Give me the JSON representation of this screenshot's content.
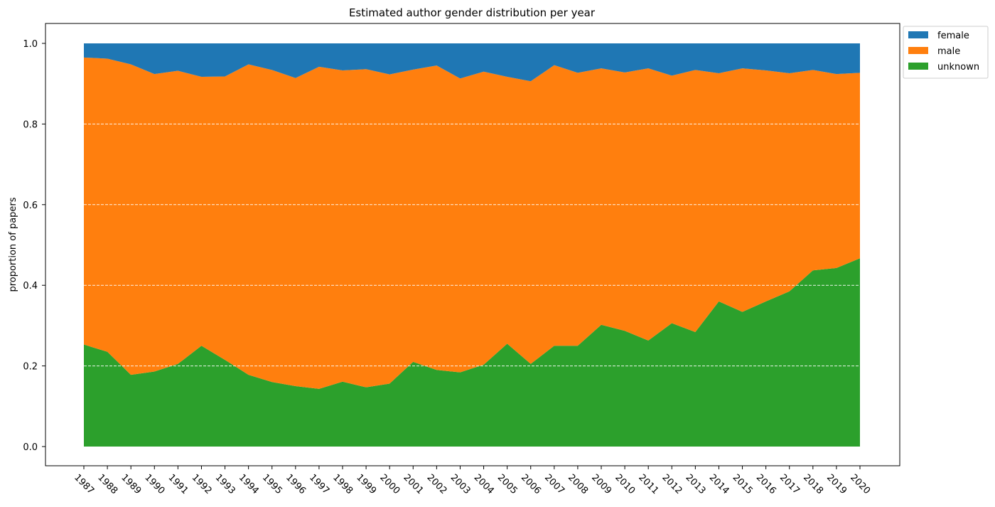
{
  "chart_data": {
    "type": "area",
    "stacked": true,
    "title": "Estimated author gender distribution per year",
    "xlabel": "",
    "ylabel": "proportion of papers",
    "ylim": [
      0.0,
      1.0
    ],
    "yticks": [
      "0.0",
      "0.2",
      "0.4",
      "0.6",
      "0.8",
      "1.0"
    ],
    "grid": "horizontal dashed",
    "legend": "outside top-right",
    "x": [
      "1987",
      "1988",
      "1989",
      "1990",
      "1991",
      "1992",
      "1993",
      "1994",
      "1995",
      "1996",
      "1997",
      "1998",
      "1999",
      "2000",
      "2001",
      "2002",
      "2003",
      "2004",
      "2005",
      "2006",
      "2007",
      "2008",
      "2009",
      "2010",
      "2011",
      "2012",
      "2013",
      "2014",
      "2015",
      "2016",
      "2017",
      "2018",
      "2019",
      "2020"
    ],
    "series": [
      {
        "name": "female",
        "color": "#1f77b4",
        "values": [
          0.035,
          0.038,
          0.052,
          0.076,
          0.068,
          0.083,
          0.082,
          0.052,
          0.066,
          0.086,
          0.058,
          0.067,
          0.064,
          0.077,
          0.065,
          0.055,
          0.087,
          0.07,
          0.083,
          0.094,
          0.054,
          0.073,
          0.062,
          0.072,
          0.062,
          0.08,
          0.066,
          0.074,
          0.062,
          0.067,
          0.074,
          0.066,
          0.076,
          0.073
        ]
      },
      {
        "name": "male",
        "color": "#ff7f0e",
        "values": [
          0.712,
          0.727,
          0.77,
          0.738,
          0.727,
          0.667,
          0.703,
          0.77,
          0.774,
          0.764,
          0.799,
          0.772,
          0.789,
          0.767,
          0.725,
          0.755,
          0.729,
          0.727,
          0.662,
          0.701,
          0.696,
          0.677,
          0.636,
          0.641,
          0.675,
          0.614,
          0.65,
          0.566,
          0.604,
          0.573,
          0.541,
          0.497,
          0.481,
          0.46
        ]
      },
      {
        "name": "unknown",
        "color": "#2ca02c",
        "values": [
          0.253,
          0.235,
          0.178,
          0.186,
          0.205,
          0.25,
          0.215,
          0.178,
          0.16,
          0.15,
          0.143,
          0.161,
          0.147,
          0.156,
          0.21,
          0.19,
          0.184,
          0.203,
          0.255,
          0.205,
          0.25,
          0.25,
          0.302,
          0.287,
          0.263,
          0.306,
          0.284,
          0.36,
          0.334,
          0.36,
          0.385,
          0.437,
          0.443,
          0.467
        ]
      }
    ]
  }
}
